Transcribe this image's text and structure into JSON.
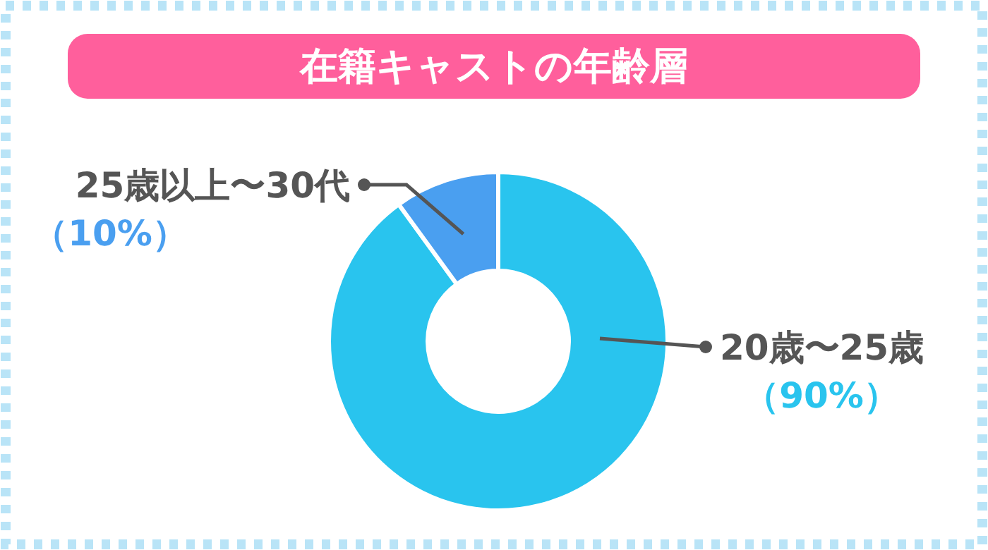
{
  "chart_data": {
    "type": "donut",
    "title": "在籍キャストの年齢層",
    "categories": [
      "20歳〜25歳",
      "25歳以上〜30代"
    ],
    "values": [
      90,
      10
    ],
    "colors": [
      "#29c4ee",
      "#4a9ff0"
    ],
    "value_labels": [
      "（90%）",
      "（10%）"
    ]
  }
}
